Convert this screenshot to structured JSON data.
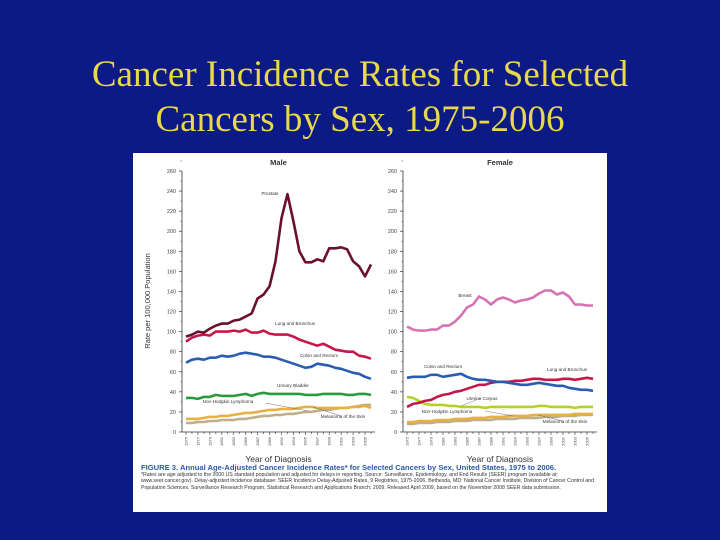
{
  "slide": {
    "title_line1": "Cancer Incidence Rates for Selected",
    "title_line2": "Cancers by Sex, 1975-2006"
  },
  "figure": {
    "caption_title": "FIGURE 3. Annual Age-Adjusted Cancer Incidence Rates* for Selected Cancers by Sex, United States, 1975 to 2006.",
    "caption_note": "*Rates are age adjusted to the 2000 US standard population and adjusted for delays in reporting. Source: Surveillance, Epidemiology, and End Results (SEER) program (available at: www.seer.cancer.gov). Delay-adjusted incidence database: SEER Incidence Delay-Adjusted Rates, 9 Registries, 1975-2006. Bethesda, MD: National Cancer Institute, Division of Cancer Control and Population Sciences, Surveillance Research Program, Statistical Research and Applications Branch; 2009. Released April 2009, based on the November 2008 SEER data submission."
  },
  "chart_data": [
    {
      "type": "line",
      "title": "Male",
      "xlabel": "Year of Diagnosis",
      "ylabel": "Rate per 100,000 Population",
      "ylim": [
        0,
        260
      ],
      "yticks": [
        "0",
        "20",
        "40",
        "60",
        "80",
        "100",
        "120",
        "140",
        "160",
        "180",
        "200",
        "220",
        "240",
        "260"
      ],
      "xlim": [
        1975,
        2006
      ],
      "xtick_labels": [
        "1975",
        "1977",
        "1979",
        "1981",
        "1983",
        "1985",
        "1987",
        "1989",
        "1991",
        "1993",
        "1995",
        "1997",
        "1999",
        "2001",
        "2003",
        "2005"
      ],
      "x_start": 1975,
      "series": [
        {
          "name": "Prostate",
          "color": "#6a0f2c",
          "values": [
            95,
            97,
            100,
            99,
            103,
            106,
            108,
            108,
            111,
            112,
            115,
            118,
            133,
            137,
            145,
            170,
            213,
            237,
            210,
            180,
            169,
            169,
            172,
            170,
            183,
            183,
            184,
            182,
            170,
            165,
            155,
            167
          ]
        },
        {
          "name": "Lung and Bronchus",
          "color": "#c4184c",
          "values": [
            90,
            94,
            96,
            97,
            96,
            100,
            100,
            100,
            101,
            100,
            102,
            99,
            99,
            101,
            98,
            97,
            97,
            97,
            95,
            92,
            90,
            88,
            86,
            88,
            85,
            82,
            81,
            80,
            80,
            76,
            75,
            73
          ]
        },
        {
          "name": "Colon and Rectum",
          "color": "#2a5db2",
          "values": [
            69,
            72,
            73,
            72,
            74,
            74,
            76,
            75,
            76,
            78,
            79,
            78,
            77,
            75,
            75,
            74,
            72,
            70,
            68,
            66,
            64,
            65,
            68,
            67,
            66,
            64,
            63,
            61,
            59,
            58,
            55,
            53
          ]
        },
        {
          "name": "Urinary Bladder",
          "color": "#2a9a3c",
          "values": [
            34,
            34,
            33,
            35,
            35,
            37,
            36,
            36,
            36,
            37,
            38,
            36,
            38,
            39,
            38,
            38,
            38,
            38,
            38,
            38,
            37,
            37,
            37,
            38,
            38,
            38,
            38,
            37,
            37,
            38,
            38,
            37
          ]
        },
        {
          "name": "Non-Hodgkin Lymphoma",
          "color": "#e8b040",
          "values": [
            13,
            13,
            13,
            14,
            15,
            15,
            16,
            16,
            17,
            18,
            19,
            19,
            20,
            21,
            22,
            22,
            23,
            23,
            23,
            24,
            25,
            25,
            24,
            24,
            24,
            24,
            24,
            24,
            25,
            25,
            26,
            24
          ]
        },
        {
          "name": "Melanoma of the Skin",
          "color": "#bfae8a",
          "values": [
            9,
            9,
            10,
            10,
            11,
            11,
            12,
            12,
            12,
            13,
            13,
            14,
            15,
            16,
            16,
            17,
            17,
            18,
            18,
            19,
            20,
            20,
            21,
            22,
            22,
            23,
            24,
            24,
            25,
            26,
            27,
            27
          ]
        }
      ]
    },
    {
      "type": "line",
      "title": "Female",
      "xlabel": "Year of Diagnosis",
      "ylim": [
        0,
        260
      ],
      "yticks": [
        "0",
        "20",
        "40",
        "60",
        "80",
        "100",
        "120",
        "140",
        "160",
        "180",
        "200",
        "220",
        "240",
        "260"
      ],
      "xlim": [
        1975,
        2006
      ],
      "xtick_labels": [
        "1975",
        "1977",
        "1979",
        "1981",
        "1983",
        "1985",
        "1987",
        "1989",
        "1991",
        "1993",
        "1995",
        "1997",
        "1999",
        "2001",
        "2003",
        "2005"
      ],
      "x_start": 1975,
      "series": [
        {
          "name": "Breast",
          "color": "#d673b4",
          "values": [
            105,
            102,
            101,
            101,
            102,
            102,
            106,
            106,
            110,
            116,
            124,
            127,
            135,
            132,
            127,
            132,
            134,
            132,
            129,
            131,
            132,
            134,
            138,
            141,
            141,
            137,
            139,
            135,
            127,
            127,
            126,
            126
          ]
        },
        {
          "name": "Colon and Rectum",
          "color": "#2a5db2",
          "values": [
            54,
            55,
            55,
            55,
            57,
            57,
            55,
            56,
            57,
            58,
            55,
            53,
            52,
            52,
            51,
            50,
            50,
            49,
            48,
            47,
            47,
            48,
            49,
            48,
            47,
            46,
            46,
            44,
            43,
            42,
            42,
            41
          ]
        },
        {
          "name": "Lung and Bronchus",
          "color": "#c4184c",
          "values": [
            25,
            28,
            29,
            31,
            32,
            35,
            37,
            38,
            40,
            41,
            43,
            45,
            47,
            47,
            49,
            50,
            50,
            50,
            51,
            51,
            52,
            53,
            53,
            52,
            52,
            52,
            53,
            53,
            52,
            53,
            54,
            53
          ]
        },
        {
          "name": "Uterine Corpus",
          "color": "#b8d024",
          "values": [
            35,
            34,
            31,
            28,
            27,
            27,
            27,
            26,
            26,
            25,
            25,
            25,
            25,
            24,
            25,
            25,
            25,
            25,
            25,
            25,
            25,
            25,
            26,
            26,
            25,
            25,
            25,
            25,
            24,
            25,
            25,
            25
          ]
        },
        {
          "name": "Non-Hodgkin Lymphoma",
          "color": "#e8b040",
          "values": [
            10,
            10,
            11,
            11,
            11,
            12,
            12,
            12,
            13,
            13,
            13,
            14,
            14,
            14,
            15,
            15,
            15,
            16,
            16,
            16,
            16,
            17,
            17,
            17,
            17,
            17,
            17,
            17,
            18,
            18,
            18,
            18
          ]
        },
        {
          "name": "Melanoma of the Skin",
          "color": "#bfae8a",
          "values": [
            8,
            8,
            9,
            9,
            9,
            10,
            10,
            10,
            11,
            11,
            11,
            12,
            12,
            12,
            12,
            13,
            13,
            13,
            13,
            14,
            14,
            14,
            14,
            15,
            15,
            15,
            16,
            16,
            16,
            17,
            17,
            17
          ]
        }
      ]
    }
  ]
}
